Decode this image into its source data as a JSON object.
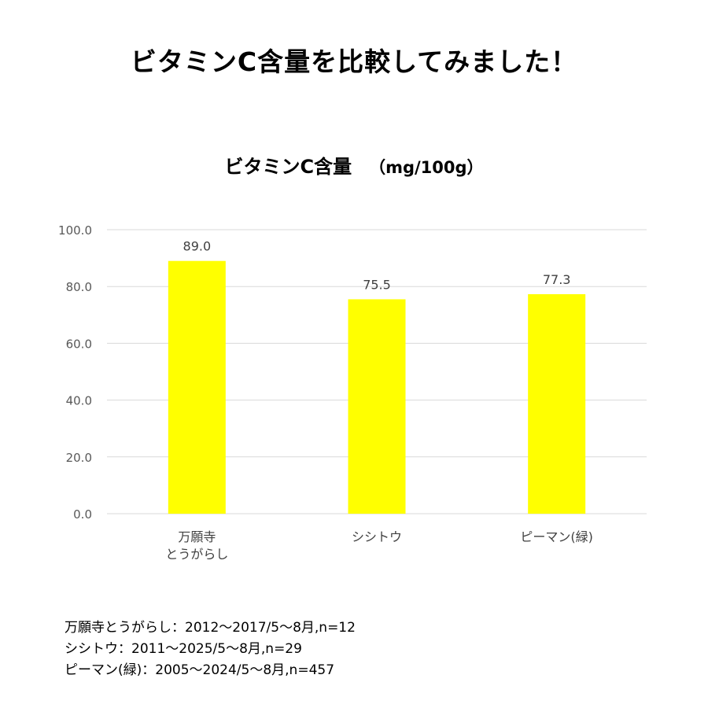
{
  "page_title": "ビタミンC含量を比較してみました！",
  "chart_data": {
    "type": "bar",
    "title": "ビタミンC含量",
    "unit": "（mg/100g）",
    "categories": [
      [
        "万願寺",
        "とうがらし"
      ],
      [
        "シシトウ"
      ],
      [
        "ピーマン(緑)"
      ]
    ],
    "values": [
      89.0,
      75.5,
      77.3
    ],
    "data_labels": [
      "89.0",
      "75.5",
      "77.3"
    ],
    "yticks": [
      "0.0",
      "20.0",
      "40.0",
      "60.0",
      "80.0",
      "100.0"
    ],
    "ylim": [
      0,
      100
    ],
    "grid": true,
    "legend": "none",
    "bar_color": "#ffff00"
  },
  "notes": [
    "万願寺とうがらし：2012〜2017/5〜8月,n=12",
    "シシトウ：2011〜2025/5〜8月,n=29",
    "ピーマン(緑)：2005〜2024/5〜8月,n=457"
  ]
}
